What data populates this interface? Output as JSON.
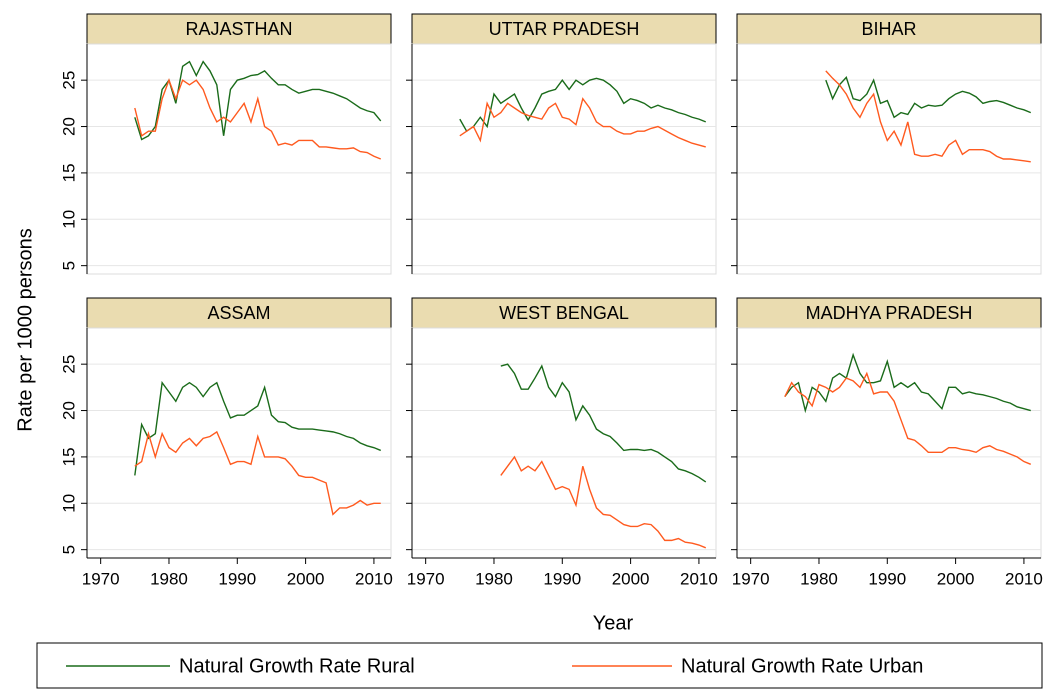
{
  "chart_data": {
    "type": "line",
    "xlabel": "Year",
    "ylabel": "Rate per 1000 persons",
    "xlim": [
      1968,
      2012.5
    ],
    "ylim": [
      4.1,
      28.9
    ],
    "xticks": [
      1970,
      1980,
      1990,
      2000,
      2010
    ],
    "yticks": [
      5,
      10,
      15,
      20,
      25
    ],
    "grid": true,
    "legend": "bottom",
    "panels": [
      {
        "title": "RAJASTHAN",
        "x": [
          1975,
          1976,
          1977,
          1978,
          1979,
          1980,
          1981,
          1982,
          1983,
          1984,
          1985,
          1986,
          1987,
          1988,
          1989,
          1990,
          1991,
          1992,
          1993,
          1994,
          1995,
          1996,
          1997,
          1998,
          1999,
          2000,
          2001,
          2002,
          2003,
          2004,
          2005,
          2006,
          2007,
          2008,
          2009,
          2010,
          2011
        ],
        "series": [
          {
            "name": "Natural Growth Rate Rural",
            "color": "#1a6b1a",
            "values": [
              21,
              18.6,
              19,
              20,
              24,
              25,
              22.5,
              26.5,
              27,
              25.5,
              27,
              26,
              24.5,
              19,
              24,
              25,
              25.2,
              25.5,
              25.6,
              26,
              25.2,
              24.5,
              24.5,
              24,
              23.6,
              23.8,
              24,
              24,
              23.8,
              23.6,
              23.3,
              23,
              22.5,
              22,
              21.7,
              21.5,
              20.6
            ]
          },
          {
            "name": "Natural Growth Rate Urban",
            "color": "#ff5a1f",
            "values": [
              22,
              19,
              19.5,
              19.5,
              23,
              25,
              23,
              25,
              24.5,
              25,
              24,
              22,
              20.5,
              21,
              20.5,
              21.5,
              22.5,
              20.5,
              23,
              20,
              19.5,
              18,
              18.2,
              18,
              18.5,
              18.5,
              18.5,
              17.8,
              17.8,
              17.7,
              17.6,
              17.6,
              17.7,
              17.3,
              17.2,
              16.8,
              16.5
            ]
          }
        ]
      },
      {
        "title": "UTTAR PRADESH",
        "x": [
          1975,
          1976,
          1977,
          1978,
          1979,
          1980,
          1981,
          1982,
          1983,
          1984,
          1985,
          1986,
          1987,
          1988,
          1989,
          1990,
          1991,
          1992,
          1993,
          1994,
          1995,
          1996,
          1997,
          1998,
          1999,
          2000,
          2001,
          2002,
          2003,
          2004,
          2005,
          2006,
          2007,
          2008,
          2009,
          2010,
          2011
        ],
        "series": [
          {
            "name": "Natural Growth Rate Rural",
            "color": "#1a6b1a",
            "values": [
              20.8,
              19.5,
              20,
              21,
              20,
              23.5,
              22.5,
              23,
              23.5,
              22,
              20.7,
              22,
              23.5,
              23.8,
              24,
              25,
              24,
              25,
              24.5,
              25,
              25.2,
              25,
              24.5,
              23.8,
              22.5,
              23,
              22.8,
              22.5,
              22,
              22.3,
              22,
              21.8,
              21.5,
              21.3,
              21,
              20.8,
              20.5
            ]
          },
          {
            "name": "Natural Growth Rate Urban",
            "color": "#ff5a1f",
            "values": [
              19,
              19.5,
              20,
              18.5,
              22.5,
              21,
              21.5,
              22.5,
              22,
              21.5,
              21.2,
              21,
              20.8,
              22,
              22.5,
              21,
              20.8,
              20.2,
              23,
              22,
              20.5,
              20,
              20,
              19.5,
              19.2,
              19.2,
              19.5,
              19.5,
              19.8,
              20,
              19.6,
              19.2,
              18.8,
              18.5,
              18.2,
              18,
              17.8
            ]
          }
        ]
      },
      {
        "title": "BIHAR",
        "x": [
          1981,
          1982,
          1983,
          1984,
          1985,
          1986,
          1987,
          1988,
          1989,
          1990,
          1991,
          1992,
          1993,
          1994,
          1995,
          1996,
          1997,
          1998,
          1999,
          2000,
          2001,
          2002,
          2003,
          2004,
          2005,
          2006,
          2007,
          2008,
          2009,
          2010,
          2011
        ],
        "series": [
          {
            "name": "Natural Growth Rate Rural",
            "color": "#1a6b1a",
            "values": [
              25,
              23,
              24.5,
              25.3,
              23,
              22.8,
              23.5,
              25,
              22.5,
              22.8,
              21,
              21.5,
              21.3,
              22.5,
              22,
              22.3,
              22.2,
              22.3,
              23,
              23.5,
              23.8,
              23.6,
              23.2,
              22.5,
              22.7,
              22.8,
              22.6,
              22.3,
              22,
              21.8,
              21.5
            ]
          },
          {
            "name": "Natural Growth Rate Urban",
            "color": "#ff5a1f",
            "values": [
              26,
              25.2,
              24.5,
              23.5,
              22,
              21,
              22.5,
              23.5,
              20.5,
              18.5,
              19.5,
              18,
              20.5,
              17,
              16.8,
              16.8,
              17,
              16.8,
              18,
              18.5,
              17,
              17.5,
              17.5,
              17.5,
              17.3,
              16.8,
              16.5,
              16.5,
              16.4,
              16.3,
              16.2
            ]
          }
        ]
      },
      {
        "title": "ASSAM",
        "x": [
          1975,
          1976,
          1977,
          1978,
          1979,
          1980,
          1981,
          1982,
          1983,
          1984,
          1985,
          1986,
          1987,
          1988,
          1989,
          1990,
          1991,
          1992,
          1993,
          1994,
          1995,
          1996,
          1997,
          1998,
          1999,
          2000,
          2001,
          2002,
          2003,
          2004,
          2005,
          2006,
          2007,
          2008,
          2009,
          2010,
          2011
        ],
        "series": [
          {
            "name": "Natural Growth Rate Rural",
            "color": "#1a6b1a",
            "values": [
              13,
              18.5,
              17,
              17.5,
              23,
              22,
              21,
              22.5,
              23,
              22.5,
              21.5,
              22.5,
              23,
              21,
              19.2,
              19.5,
              19.5,
              20,
              20.5,
              22.5,
              19.5,
              18.8,
              18.7,
              18.2,
              18,
              18,
              18,
              17.9,
              17.8,
              17.7,
              17.5,
              17.2,
              17,
              16.5,
              16.2,
              16,
              15.7
            ]
          },
          {
            "name": "Natural Growth Rate Urban",
            "color": "#ff5a1f",
            "values": [
              14,
              14.5,
              17.5,
              15,
              17.5,
              16,
              15.5,
              16.5,
              17,
              16.2,
              17,
              17.2,
              17.7,
              16,
              14.2,
              14.5,
              14.5,
              14.2,
              17.2,
              15,
              15,
              15,
              14.8,
              14,
              13,
              12.8,
              12.8,
              12.5,
              12.2,
              8.8,
              9.5,
              9.5,
              9.8,
              10.3,
              9.8,
              10,
              10
            ]
          }
        ]
      },
      {
        "title": "WEST BENGAL",
        "x": [
          1981,
          1982,
          1983,
          1984,
          1985,
          1986,
          1987,
          1988,
          1989,
          1990,
          1991,
          1992,
          1993,
          1994,
          1995,
          1996,
          1997,
          1998,
          1999,
          2000,
          2001,
          2002,
          2003,
          2004,
          2005,
          2006,
          2007,
          2008,
          2009,
          2010,
          2011
        ],
        "series": [
          {
            "name": "Natural Growth Rate Rural",
            "color": "#1a6b1a",
            "values": [
              24.8,
              25,
              24,
              22.3,
              22.3,
              23.5,
              24.8,
              22.5,
              21.5,
              23,
              22,
              19,
              20.5,
              19.5,
              18,
              17.5,
              17.2,
              16.5,
              15.7,
              15.8,
              15.8,
              15.7,
              15.8,
              15.5,
              15,
              14.5,
              13.7,
              13.5,
              13.2,
              12.8,
              12.3
            ]
          },
          {
            "name": "Natural Growth Rate Urban",
            "color": "#ff5a1f",
            "values": [
              13,
              14,
              15,
              13.5,
              14,
              13.5,
              14.5,
              13,
              11.5,
              11.8,
              11.5,
              9.8,
              14,
              11.5,
              9.5,
              8.8,
              8.7,
              8.2,
              7.7,
              7.5,
              7.5,
              7.8,
              7.7,
              7,
              6,
              6,
              6.2,
              5.8,
              5.7,
              5.5,
              5.2
            ]
          }
        ]
      },
      {
        "title": "MADHYA PRADESH",
        "x": [
          1975,
          1976,
          1977,
          1978,
          1979,
          1980,
          1981,
          1982,
          1983,
          1984,
          1985,
          1986,
          1987,
          1988,
          1989,
          1990,
          1991,
          1992,
          1993,
          1994,
          1995,
          1996,
          1997,
          1998,
          1999,
          2000,
          2001,
          2002,
          2003,
          2004,
          2005,
          2006,
          2007,
          2008,
          2009,
          2010,
          2011
        ],
        "series": [
          {
            "name": "Natural Growth Rate Rural",
            "color": "#1a6b1a",
            "values": [
              21.5,
              22.5,
              23,
              20,
              22.5,
              22,
              21,
              23.5,
              24,
              23.5,
              26,
              24,
              23,
              23,
              23.2,
              25.3,
              22.5,
              23,
              22.5,
              23,
              22,
              21.8,
              21,
              20.2,
              22.5,
              22.5,
              21.8,
              22,
              21.8,
              21.7,
              21.5,
              21.3,
              21,
              20.8,
              20.4,
              20.2,
              20
            ]
          },
          {
            "name": "Natural Growth Rate Urban",
            "color": "#ff5a1f",
            "values": [
              21.5,
              23,
              22,
              21.5,
              20.5,
              22.8,
              22.5,
              22,
              22.5,
              23.5,
              23.2,
              22.5,
              24,
              21.8,
              22,
              22,
              21,
              19,
              17,
              16.8,
              16.2,
              15.5,
              15.5,
              15.5,
              16,
              16,
              15.8,
              15.7,
              15.5,
              16,
              16.2,
              15.8,
              15.6,
              15.3,
              15,
              14.5,
              14.2
            ]
          }
        ]
      }
    ]
  }
}
